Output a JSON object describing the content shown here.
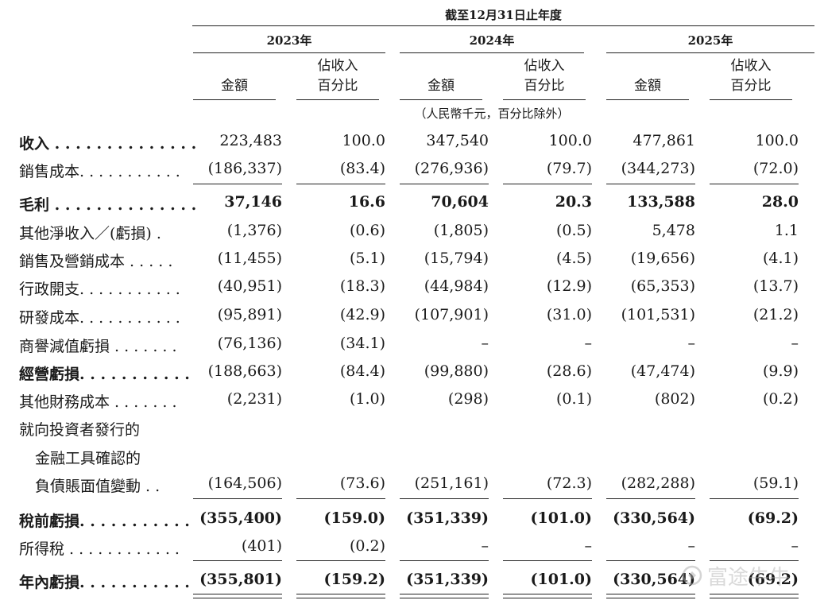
{
  "header": {
    "period": "截至12月31日止年度",
    "years": [
      "2023年",
      "2024年",
      "2025年"
    ],
    "amount_label": "金額",
    "pct_label_line1": "佔收入",
    "pct_label_line2": "百分比",
    "unit_note": "（人民幣千元，百分比除外）"
  },
  "rows": [
    {
      "label": "收入 . . . . . . . . . . . . . .",
      "v": [
        "223,483",
        "100.0",
        "347,540",
        "100.0",
        "477,861",
        "100.0"
      ]
    },
    {
      "label": "銷售成本. . . . . . . . . . .",
      "v": [
        "(186,337)",
        "(83.4)",
        "(276,936)",
        "(79.7)",
        "(344,273)",
        "(72.0)"
      ]
    },
    {
      "label": "毛利 . . . . . . . . . . . . . .",
      "v": [
        "37,146",
        "16.6",
        "70,604",
        "20.3",
        "133,588",
        "28.0"
      ]
    },
    {
      "label": "其他淨收入／(虧損) .",
      "v": [
        "(1,376)",
        "(0.6)",
        "(1,805)",
        "(0.5)",
        "5,478",
        "1.1"
      ]
    },
    {
      "label": "銷售及營銷成本 . . . . .",
      "v": [
        "(11,455)",
        "(5.1)",
        "(15,794)",
        "(4.5)",
        "(19,656)",
        "(4.1)"
      ]
    },
    {
      "label": "行政開支. . . . . . . . . . .",
      "v": [
        "(40,951)",
        "(18.3)",
        "(44,984)",
        "(12.9)",
        "(65,353)",
        "(13.7)"
      ]
    },
    {
      "label": "研發成本. . . . . . . . . . .",
      "v": [
        "(95,891)",
        "(42.9)",
        "(107,901)",
        "(31.0)",
        "(101,531)",
        "(21.2)"
      ]
    },
    {
      "label": "商譽減值虧損 . . . . . . .",
      "v": [
        "(76,136)",
        "(34.1)",
        "–",
        "–",
        "–",
        "–"
      ]
    },
    {
      "label": "經營虧損. . . . . . . . . . .",
      "v": [
        "(188,663)",
        "(84.4)",
        "(99,880)",
        "(28.6)",
        "(47,474)",
        "(9.9)"
      ]
    },
    {
      "label": "其他財務成本 . . . . . . .",
      "v": [
        "(2,231)",
        "(1.0)",
        "(298)",
        "(0.1)",
        "(802)",
        "(0.2)"
      ]
    },
    {
      "label_lines": [
        "就向投資者發行的",
        "金融工具確認的",
        "負債賬面值變動 . ."
      ],
      "v": [
        "(164,506)",
        "(73.6)",
        "(251,161)",
        "(72.3)",
        "(282,288)",
        "(59.1)"
      ]
    },
    {
      "label": "稅前虧損. . . . . . . . . . .",
      "v": [
        "(355,400)",
        "(159.0)",
        "(351,339)",
        "(101.0)",
        "(330,564)",
        "(69.2)"
      ]
    },
    {
      "label": "所得稅 . . . . . . . . . . . .",
      "v": [
        "(401)",
        "(0.2)",
        "–",
        "–",
        "–",
        "–"
      ]
    },
    {
      "label": "年內虧損. . . . . . . . . . .",
      "v": [
        "(355,801)",
        "(159.2)",
        "(351,339)",
        "(101.0)",
        "(330,564)",
        "(69.2)"
      ]
    }
  ],
  "watermark": {
    "text": "富途牛牛",
    "icon": "futu-logo-icon"
  }
}
